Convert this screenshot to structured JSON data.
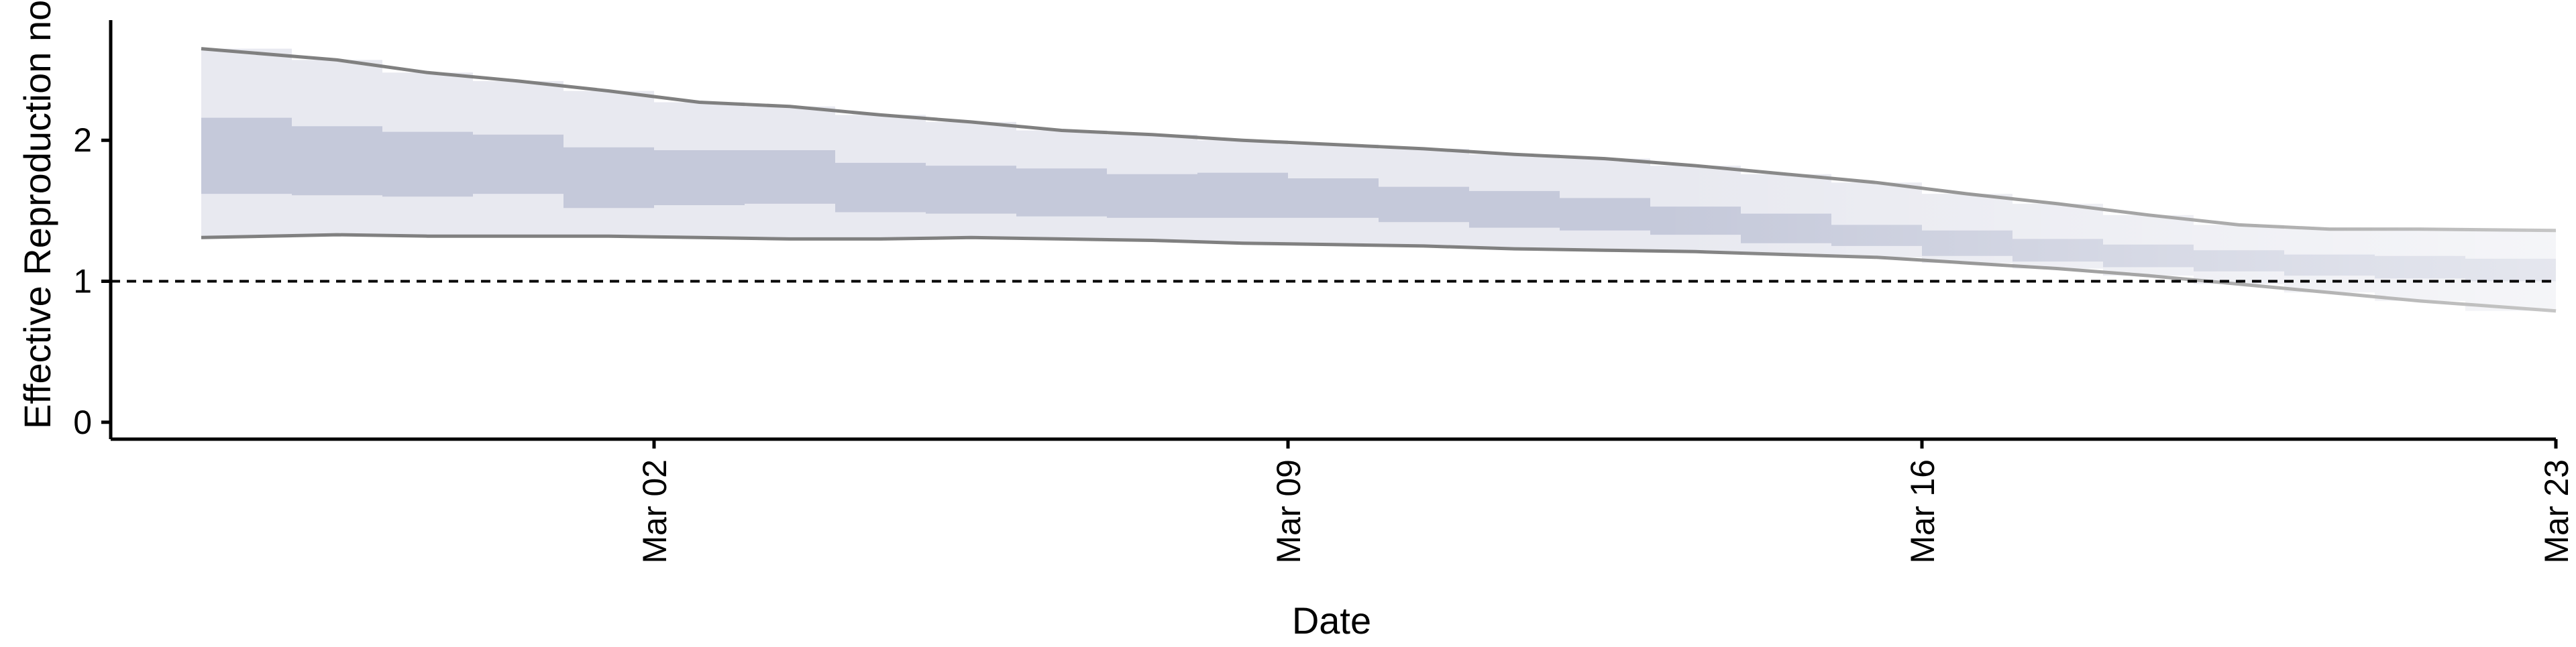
{
  "chart_data": {
    "type": "area",
    "xlabel": "Date",
    "ylabel": "Effective Reproduction no",
    "x_ticks": [
      "Mar 02",
      "Mar 09",
      "Mar 16",
      "Mar 23"
    ],
    "y_ticks": [
      "0",
      "1",
      "2"
    ],
    "xlim": [
      "2020-02-25",
      "2020-03-23"
    ],
    "ylim": [
      -0.12,
      2.9
    ],
    "x": [
      "2020-02-26",
      "2020-02-27",
      "2020-02-28",
      "2020-02-29",
      "2020-03-01",
      "2020-03-02",
      "2020-03-03",
      "2020-03-04",
      "2020-03-05",
      "2020-03-06",
      "2020-03-07",
      "2020-03-08",
      "2020-03-09",
      "2020-03-10",
      "2020-03-11",
      "2020-03-12",
      "2020-03-13",
      "2020-03-14",
      "2020-03-15",
      "2020-03-16",
      "2020-03-17",
      "2020-03-18",
      "2020-03-19",
      "2020-03-20",
      "2020-03-21",
      "2020-03-22"
    ],
    "series": [
      {
        "role": "outer-interval",
        "lower": [
          1.31,
          1.33,
          1.32,
          1.32,
          1.32,
          1.31,
          1.3,
          1.3,
          1.31,
          1.3,
          1.29,
          1.27,
          1.26,
          1.25,
          1.23,
          1.22,
          1.21,
          1.19,
          1.17,
          1.13,
          1.09,
          1.04,
          0.98,
          0.92,
          0.86,
          0.79
        ],
        "upper": [
          2.65,
          2.57,
          2.48,
          2.42,
          2.35,
          2.27,
          2.24,
          2.18,
          2.13,
          2.07,
          2.04,
          2.0,
          1.97,
          1.94,
          1.9,
          1.87,
          1.82,
          1.76,
          1.7,
          1.62,
          1.55,
          1.47,
          1.4,
          1.37,
          1.37,
          1.36
        ]
      },
      {
        "role": "inner-interval",
        "lower": [
          1.62,
          1.61,
          1.6,
          1.62,
          1.52,
          1.54,
          1.55,
          1.49,
          1.48,
          1.46,
          1.45,
          1.45,
          1.45,
          1.42,
          1.38,
          1.36,
          1.33,
          1.27,
          1.25,
          1.18,
          1.14,
          1.1,
          1.07,
          1.04,
          1.02,
          1.0
        ],
        "upper": [
          2.16,
          2.1,
          2.06,
          2.04,
          1.95,
          1.93,
          1.93,
          1.84,
          1.82,
          1.8,
          1.76,
          1.77,
          1.73,
          1.67,
          1.64,
          1.59,
          1.53,
          1.48,
          1.4,
          1.36,
          1.3,
          1.26,
          1.22,
          1.19,
          1.18,
          1.16
        ]
      }
    ],
    "reference_line": {
      "y": 1,
      "style": "dashed"
    },
    "colors": {
      "outer_band": "#e8e9f0",
      "inner_band": "#c5c9da",
      "band_edge": "#808080",
      "reference_line": "#000000"
    },
    "grid": false,
    "legend": "none"
  }
}
